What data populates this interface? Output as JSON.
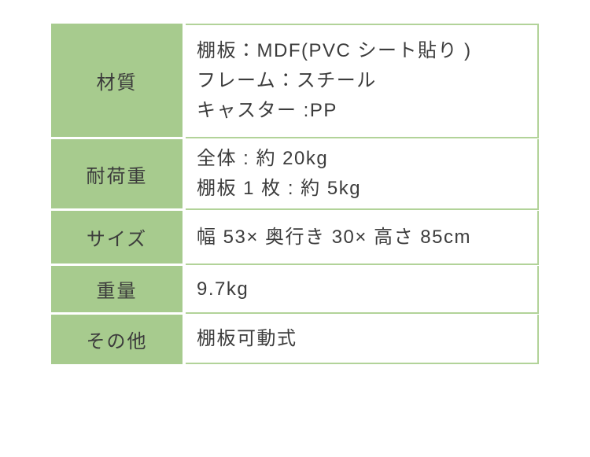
{
  "table": {
    "colors": {
      "label_bg": "#a7cb8e",
      "line": "#b2d399",
      "text": "#3c3c3c",
      "bg": "#ffffff",
      "gap": "#ffffff"
    },
    "rows": [
      {
        "label": "材質",
        "value": "棚板：MDF(PVC シート貼り )\nフレーム：スチール\nキャスター :PP"
      },
      {
        "label": "耐荷重",
        "value": "全体 : 約 20kg\n棚板 1 枚 : 約 5kg"
      },
      {
        "label": "サイズ",
        "value": "幅 53× 奥行き 30× 高さ 85cm"
      },
      {
        "label": "重量",
        "value": "9.7kg"
      },
      {
        "label": "その他",
        "value": "棚板可動式"
      }
    ]
  }
}
